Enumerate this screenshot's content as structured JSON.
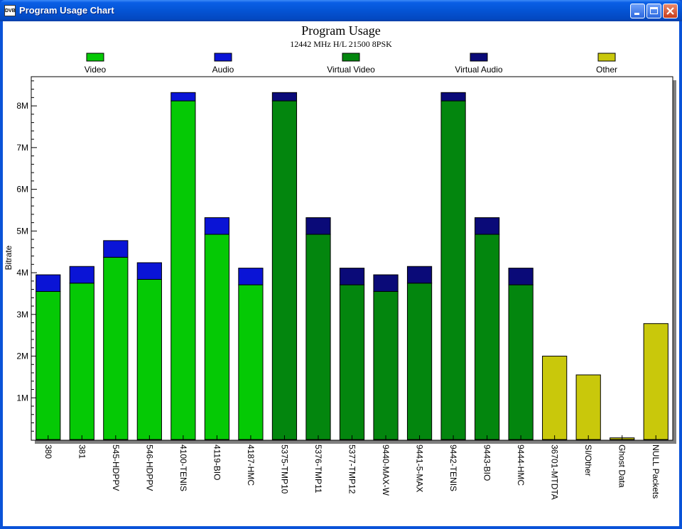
{
  "window": {
    "title": "Program Usage Chart",
    "icon_label": "DVB"
  },
  "colors": {
    "video": "#05c905",
    "audio": "#0a14d6",
    "virtual_video": "#03860e",
    "virtual_audio": "#0a0a78",
    "other": "#c9c80b",
    "plot_shadow": "#7f7f7f"
  },
  "chart_data": {
    "type": "bar",
    "stacked": true,
    "title": "Program Usage",
    "subtitle": "12442 MHz H/L 21500 8PSK",
    "xlabel": "",
    "ylabel": "Bitrate",
    "ylim": [
      0,
      8700000
    ],
    "yticks": [
      1000000,
      2000000,
      3000000,
      4000000,
      5000000,
      6000000,
      7000000,
      8000000
    ],
    "ytick_labels": [
      "1M",
      "2M",
      "3M",
      "4M",
      "5M",
      "6M",
      "7M",
      "8M"
    ],
    "grid": false,
    "legend": "top",
    "legend_items": [
      {
        "label": "Video",
        "color_key": "video"
      },
      {
        "label": "Audio",
        "color_key": "audio"
      },
      {
        "label": "Virtual Video",
        "color_key": "virtual_video"
      },
      {
        "label": "Virtual Audio",
        "color_key": "virtual_audio"
      },
      {
        "label": "Other",
        "color_key": "other"
      }
    ],
    "categories": [
      "380",
      "381",
      "545-HDPPV",
      "546-HDPPV",
      "4100-TENIS",
      "4119-BIO",
      "4187-HMC",
      "5375-TMP10",
      "5376-TMP11",
      "5377-TMP12",
      "9440-MAX-W",
      "9441-5-MAX",
      "9442-TENIS",
      "9443-BIO",
      "9444-HMC",
      "36701-MTDTA",
      "SI/Other",
      "Ghost Data",
      "NULL Packets"
    ],
    "series": [
      {
        "name": "Video",
        "color_key": "video",
        "values": [
          3550000,
          3750000,
          4370000,
          3840000,
          8120000,
          4920000,
          3710000,
          0,
          0,
          0,
          0,
          0,
          0,
          0,
          0,
          0,
          0,
          0,
          0
        ]
      },
      {
        "name": "Audio",
        "color_key": "audio",
        "values": [
          400000,
          400000,
          400000,
          400000,
          200000,
          400000,
          400000,
          0,
          0,
          0,
          0,
          0,
          0,
          0,
          0,
          0,
          0,
          0,
          0
        ]
      },
      {
        "name": "Virtual Video",
        "color_key": "virtual_video",
        "values": [
          0,
          0,
          0,
          0,
          0,
          0,
          0,
          8120000,
          4920000,
          3710000,
          3550000,
          3750000,
          8120000,
          4920000,
          3710000,
          0,
          0,
          0,
          0
        ]
      },
      {
        "name": "Virtual Audio",
        "color_key": "virtual_audio",
        "values": [
          0,
          0,
          0,
          0,
          0,
          0,
          0,
          200000,
          400000,
          400000,
          400000,
          400000,
          200000,
          400000,
          400000,
          0,
          0,
          0,
          0
        ]
      },
      {
        "name": "Other",
        "color_key": "other",
        "values": [
          0,
          0,
          0,
          0,
          0,
          0,
          0,
          0,
          0,
          0,
          0,
          0,
          0,
          0,
          0,
          2000000,
          1550000,
          40000,
          2780000
        ]
      }
    ]
  }
}
